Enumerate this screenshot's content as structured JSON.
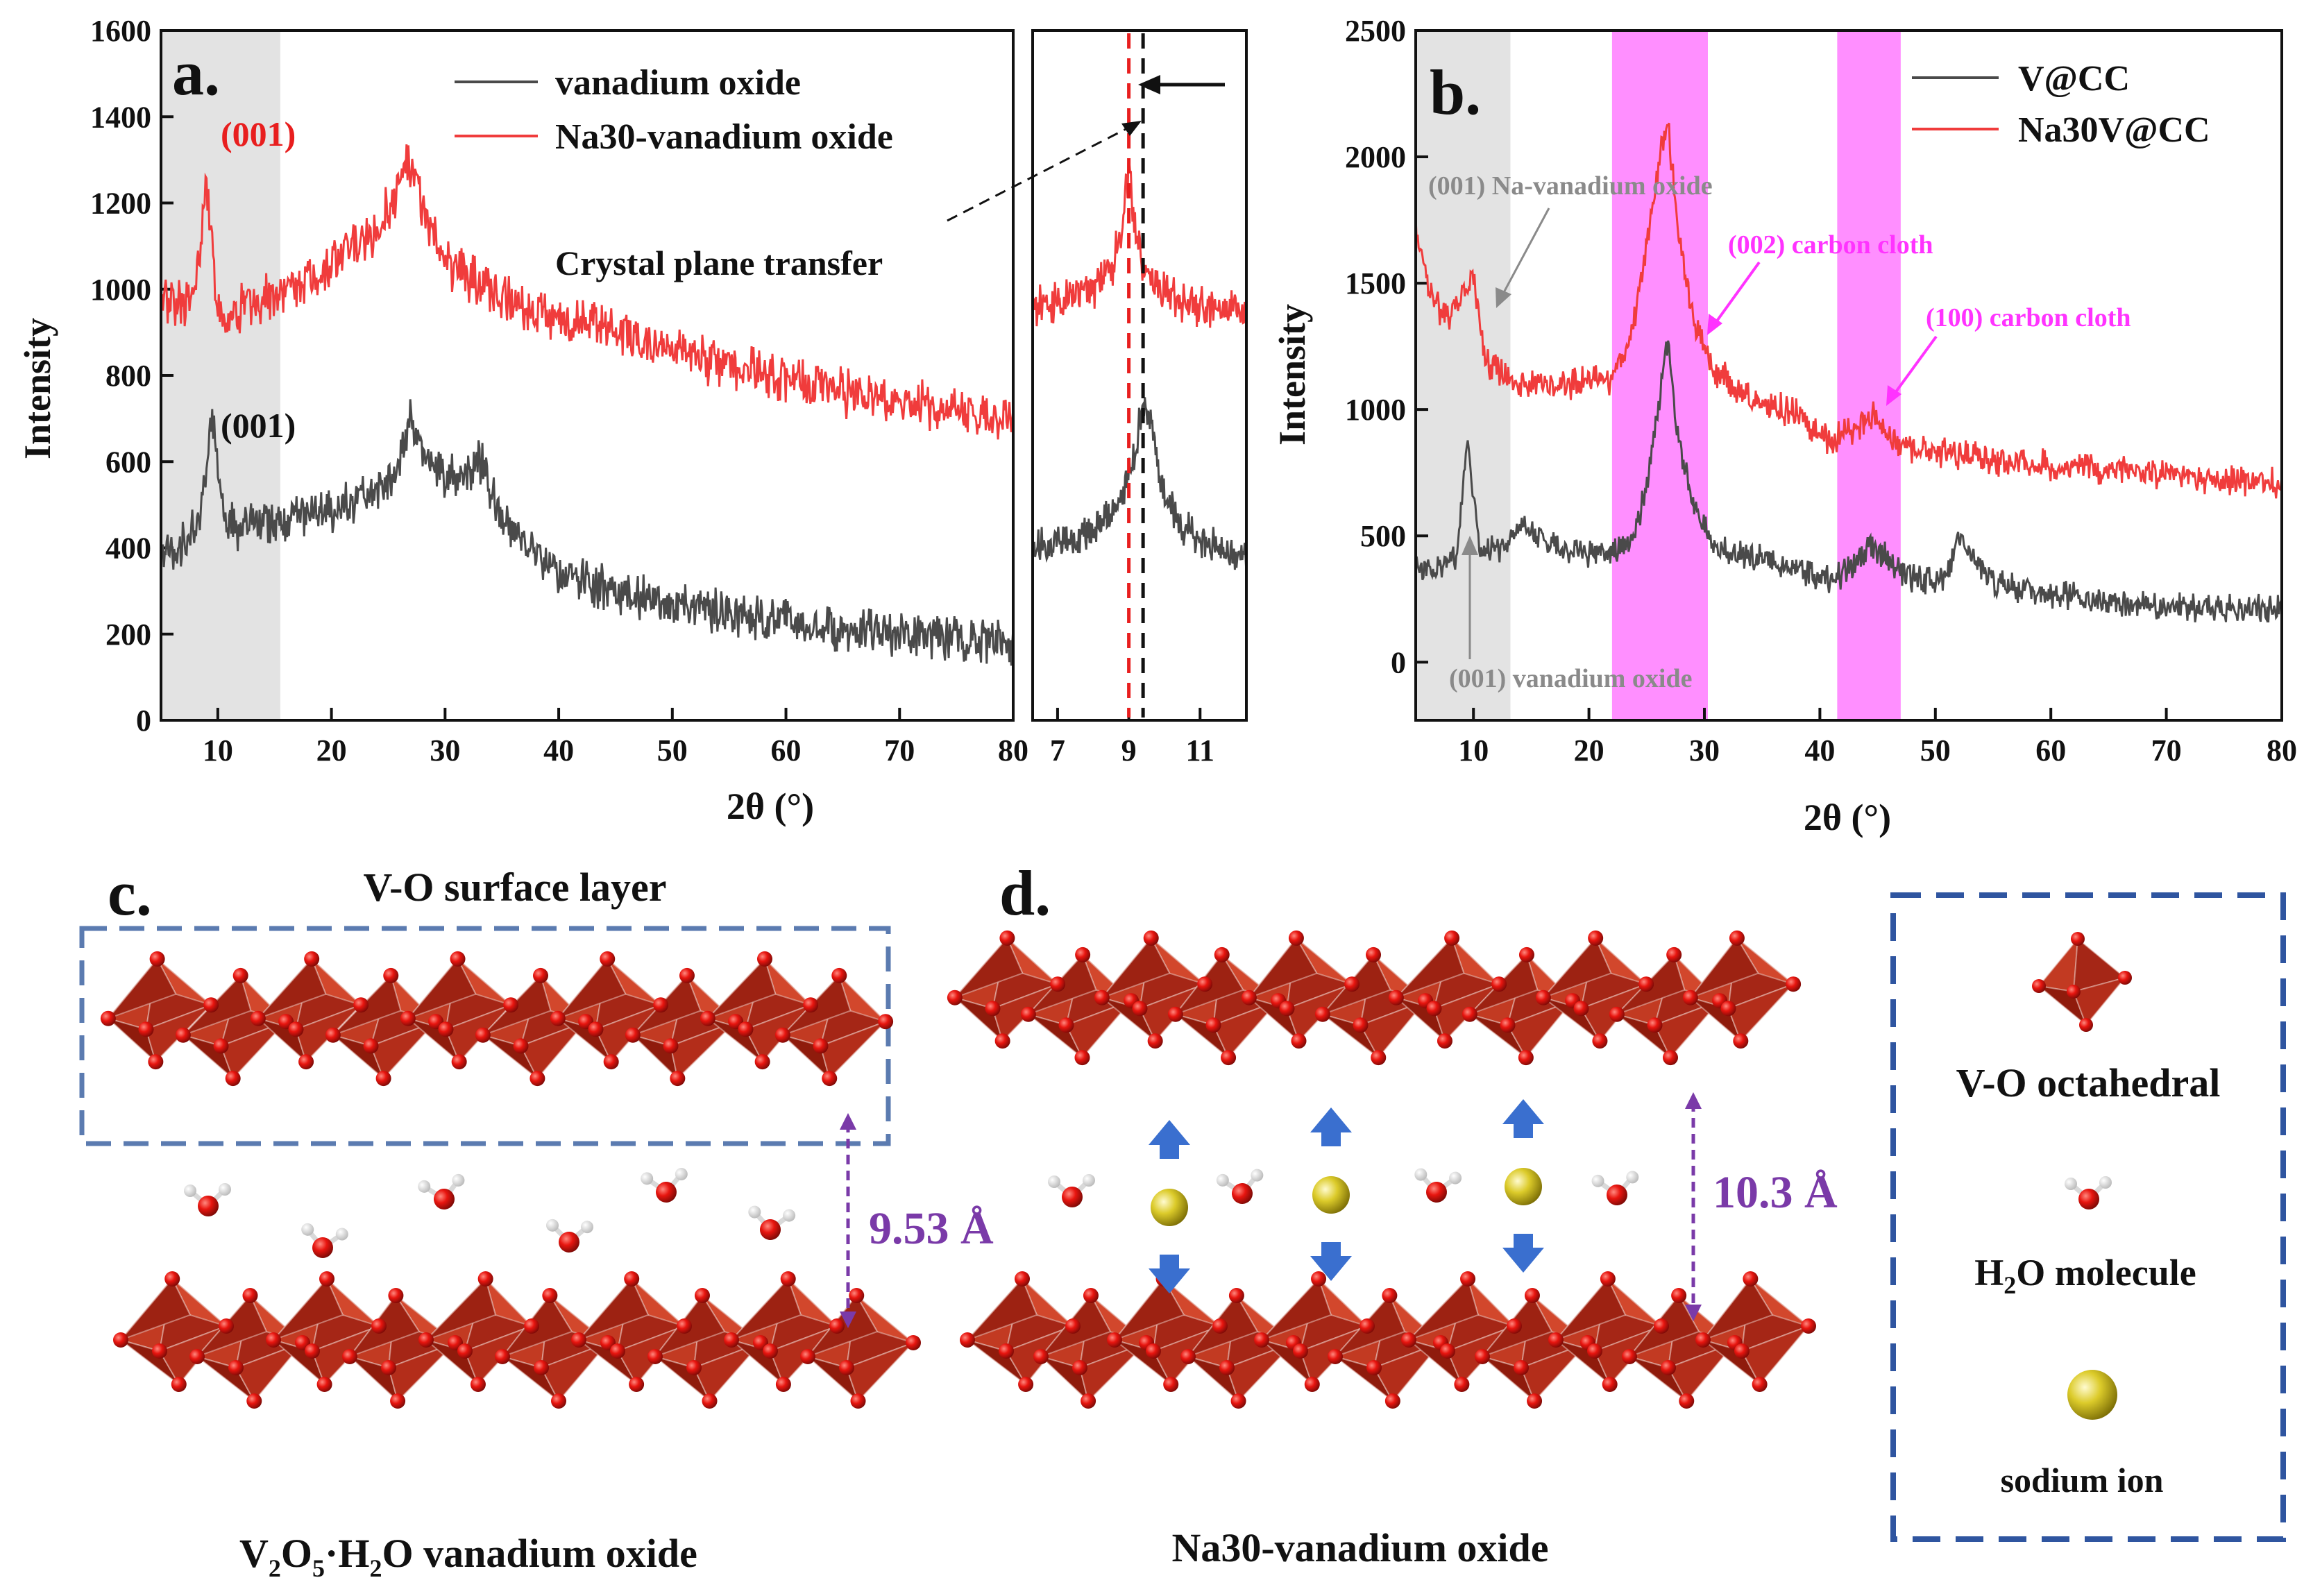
{
  "colors": {
    "black_series": "#4a4a4a",
    "red_series": "#f03c3c",
    "magenta": "#ff33ff",
    "shade": "#e3e3e3",
    "vo": "#b82514",
    "atom": "#e8150f",
    "na": "#d4c41c",
    "arrow": "#3a6fcf",
    "dim": "#7a3aa8",
    "frame": "#5b7bb0"
  },
  "panel_a": {
    "label": "a.",
    "chart_data": {
      "type": "line",
      "xlabel": "2θ (°)",
      "ylabel": "Intensity",
      "xlim": [
        5,
        80
      ],
      "ylim": [
        0,
        1600
      ],
      "xticks": [
        "10",
        "20",
        "30",
        "40",
        "50",
        "60",
        "70",
        "80"
      ],
      "yticks": [
        "0",
        "200",
        "400",
        "600",
        "800",
        "1000",
        "1200",
        "1400",
        "1600"
      ],
      "shaded_region": [
        5,
        15.5
      ],
      "series": [
        {
          "name": "vanadium oxide",
          "color": "#4a4a4a",
          "x": [
            5,
            7,
            8.5,
            9.5,
            10.5,
            12,
            14,
            16,
            20,
            24,
            26,
            27,
            28,
            30,
            32,
            33,
            35,
            40,
            45,
            50,
            55,
            60,
            65,
            70,
            75,
            80
          ],
          "y": [
            380,
            410,
            460,
            720,
            470,
            440,
            460,
            470,
            480,
            540,
            590,
            700,
            620,
            560,
            580,
            610,
            460,
            340,
            300,
            270,
            250,
            230,
            210,
            200,
            190,
            180
          ]
        },
        {
          "name": "Na30-vanadium oxide",
          "color": "#f03c3c",
          "x": [
            5,
            7,
            8,
            9,
            10,
            11,
            12,
            14,
            16,
            20,
            24,
            26,
            27,
            28,
            30,
            32,
            35,
            40,
            45,
            50,
            55,
            60,
            65,
            70,
            75,
            80
          ],
          "y": [
            980,
            960,
            1000,
            1270,
            940,
            920,
            960,
            980,
            1000,
            1060,
            1140,
            1240,
            1300,
            1180,
            1060,
            1030,
            980,
            930,
            900,
            860,
            820,
            790,
            760,
            740,
            720,
            690
          ]
        }
      ],
      "annotations": [
        "(001)",
        "(001)",
        "Crystal plane transfer"
      ]
    },
    "inset": {
      "xlim": [
        6.3,
        12.3
      ],
      "xticks": [
        "7",
        "9",
        "11"
      ],
      "chart_data": {
        "type": "line",
        "series": [
          {
            "name": "vanadium oxide",
            "color": "#4a4a4a",
            "x": [
              6.3,
              7,
              7.5,
              8,
              8.5,
              8.9,
              9.2,
              9.45,
              9.7,
              10,
              10.5,
              11,
              11.5,
              12,
              12.3
            ],
            "y": [
              400,
              410,
              420,
              450,
              480,
              540,
              640,
              760,
              650,
              520,
              450,
              420,
              400,
              390,
              380
            ]
          },
          {
            "name": "Na30-vanadium oxide",
            "color": "#f03c3c",
            "x": [
              6.3,
              7,
              7.5,
              8,
              8.5,
              8.8,
              9,
              9.2,
              9.5,
              10,
              10.5,
              11,
              11.5,
              12,
              12.3
            ],
            "y": [
              960,
              970,
              980,
              1000,
              1040,
              1150,
              1280,
              1130,
              1030,
              990,
              970,
              960,
              950,
              950,
              950
            ]
          }
        ]
      },
      "red_line_x": 9.0,
      "black_line_x": 9.4
    }
  },
  "panel_b": {
    "label": "b.",
    "chart_data": {
      "type": "line",
      "xlabel": "2θ (°)",
      "ylabel": "Intensity",
      "xlim": [
        5,
        80
      ],
      "ylim": [
        -230,
        2500
      ],
      "xticks": [
        "10",
        "20",
        "30",
        "40",
        "50",
        "60",
        "70",
        "80"
      ],
      "yticks": [
        "0",
        "500",
        "1000",
        "1500",
        "2000",
        "2500"
      ],
      "shaded_region": [
        5,
        13.2
      ],
      "highlight_regions": [
        [
          22,
          30.3
        ],
        [
          41.5,
          47
        ]
      ],
      "series": [
        {
          "name": "V@CC",
          "color": "#4a4a4a",
          "x": [
            5,
            7,
            8.5,
            9.5,
            10.5,
            12,
            14,
            18,
            22,
            24,
            25,
            26,
            26.8,
            27.5,
            29,
            31,
            34,
            38,
            41,
            43,
            44.5,
            46,
            48,
            51,
            52,
            55,
            60,
            65,
            70,
            75,
            80
          ],
          "y": [
            360,
            370,
            420,
            880,
            450,
            440,
            540,
            440,
            420,
            500,
            700,
            1000,
            1280,
            950,
            620,
            450,
            420,
            360,
            320,
            380,
            470,
            400,
            330,
            320,
            500,
            310,
            270,
            240,
            220,
            210,
            210
          ]
        },
        {
          "name": "Na30V@CC",
          "color": "#f03c3c",
          "x": [
            5,
            6,
            7.5,
            9,
            10,
            11,
            12,
            14,
            18,
            22,
            24,
            25,
            26,
            26.8,
            27.5,
            29,
            31,
            34,
            38,
            41,
            43,
            44.5,
            46,
            48,
            52,
            55,
            60,
            65,
            70,
            75,
            80
          ],
          "y": [
            1750,
            1500,
            1350,
            1450,
            1520,
            1200,
            1150,
            1110,
            1100,
            1120,
            1350,
            1650,
            1950,
            2150,
            1800,
            1350,
            1150,
            1050,
            980,
            870,
            930,
            980,
            900,
            850,
            820,
            800,
            780,
            760,
            740,
            720,
            710
          ]
        }
      ],
      "annotations": [
        "(001) Na-vanadium oxide",
        "(002) carbon cloth",
        "(100) carbon cloth",
        "(001) vanadium oxide"
      ]
    }
  },
  "panel_c": {
    "label": "c.",
    "top_title": "V-O surface layer",
    "distance": "9.53 Å",
    "caption_v2o5": "V",
    "caption_sub1": "2",
    "caption_o5": "O",
    "caption_sub2": "5",
    "caption_rest": "·H",
    "caption_sub3": "2",
    "caption_end": "O vanadium oxide"
  },
  "panel_d": {
    "label": "d.",
    "distance": "10.3 Å",
    "caption": "Na30-vanadium oxide"
  },
  "legend_box": {
    "vo_label": "V-O octahedral",
    "h2o_label_pre": "H",
    "h2o_sub": "2",
    "h2o_label_post": "O  molecule",
    "na_label": "sodium ion"
  }
}
